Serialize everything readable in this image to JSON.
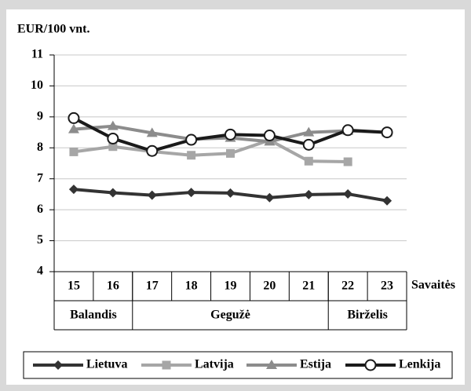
{
  "chart_data": {
    "type": "line",
    "y_label": "EUR/100 vnt.",
    "x_label": "Savaitės",
    "categories": [
      "15",
      "16",
      "17",
      "18",
      "19",
      "20",
      "21",
      "22",
      "23"
    ],
    "groups": [
      {
        "name": "Balandis",
        "count": 2
      },
      {
        "name": "Gegužė",
        "count": 5
      },
      {
        "name": "Birželis",
        "count": 2
      }
    ],
    "ylim": [
      4,
      11
    ],
    "yticks": [
      4,
      5,
      6,
      7,
      8,
      9,
      10,
      11
    ],
    "grid": true,
    "legend": "bottom",
    "series": [
      {
        "name": "Lietuva",
        "color": "#333333",
        "marker": "diamond",
        "values": [
          6.66,
          6.55,
          6.47,
          6.56,
          6.54,
          6.39,
          6.49,
          6.51,
          6.29
        ]
      },
      {
        "name": "Latvija",
        "color": "#a6a6a6",
        "marker": "square",
        "values": [
          7.87,
          8.04,
          7.88,
          7.76,
          7.82,
          8.25,
          7.57,
          7.55,
          null
        ]
      },
      {
        "name": "Estija",
        "color": "#8c8c8c",
        "marker": "triangle",
        "values": [
          8.6,
          8.7,
          8.48,
          8.28,
          8.32,
          8.2,
          8.5,
          8.55,
          8.5
        ]
      },
      {
        "name": "Lenkija",
        "color": "#1a1a1a",
        "marker": "circle",
        "values": [
          8.96,
          8.3,
          7.9,
          8.26,
          8.43,
          8.4,
          8.1,
          8.57,
          8.5
        ]
      }
    ]
  }
}
